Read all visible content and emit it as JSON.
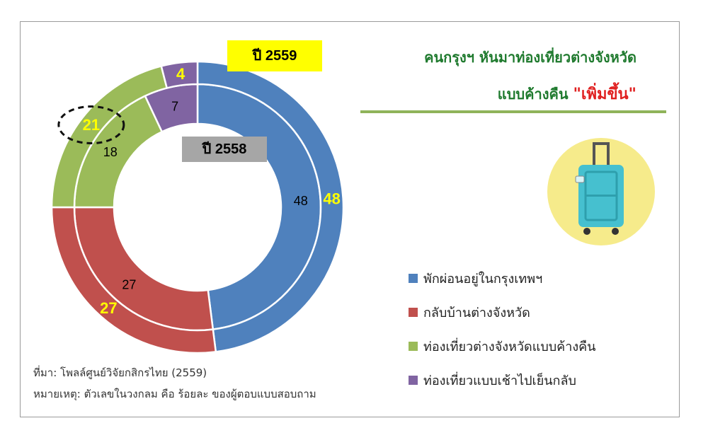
{
  "title": {
    "line1": "คนกรุงฯ หันมาท่องเที่ยวต่างจังหวัด",
    "line2_main": "แบบค้างคืน ",
    "line2_highlight": "\"เพิ่มขึ้น\""
  },
  "chart_data": {
    "type": "donut",
    "categories": [
      "พักผ่อนอยู่ในกรุงเทพฯ",
      "กลับบ้านต่างจังหวัด",
      "ท่องเที่ยวต่างจังหวัดแบบค้างคืน",
      "ท่องเที่ยวแบบเช้าไปเย็นกลับ"
    ],
    "series": [
      {
        "name": "ปี 2558",
        "ring": "inner",
        "values": [
          48,
          27,
          18,
          7
        ]
      },
      {
        "name": "ปี 2559",
        "ring": "outer",
        "values": [
          48,
          27,
          21,
          4
        ]
      }
    ],
    "colors": [
      "#4f81bd",
      "#c0504d",
      "#9bbb59",
      "#8064a2"
    ],
    "label_colors": {
      "outer": "#ffff00",
      "inner": "#000000"
    },
    "badges": {
      "outer_bg": "#ffff00",
      "inner_bg": "#a6a6a6"
    },
    "highlight": {
      "ring": "outer",
      "category_index": 2
    },
    "legend_position": "right"
  },
  "footnote": {
    "source": "ที่มา: โพลล์ศูนย์วิจัยกสิกรไทย (2559)",
    "note": "หมายเหตุ: ตัวเลขในวงกลม คือ ร้อยละ ของผู้ตอบแบบสอบถาม"
  },
  "icon": {
    "name": "suitcase-icon",
    "circle_color": "#f6eb8b",
    "body_color": "#46c0cf"
  }
}
